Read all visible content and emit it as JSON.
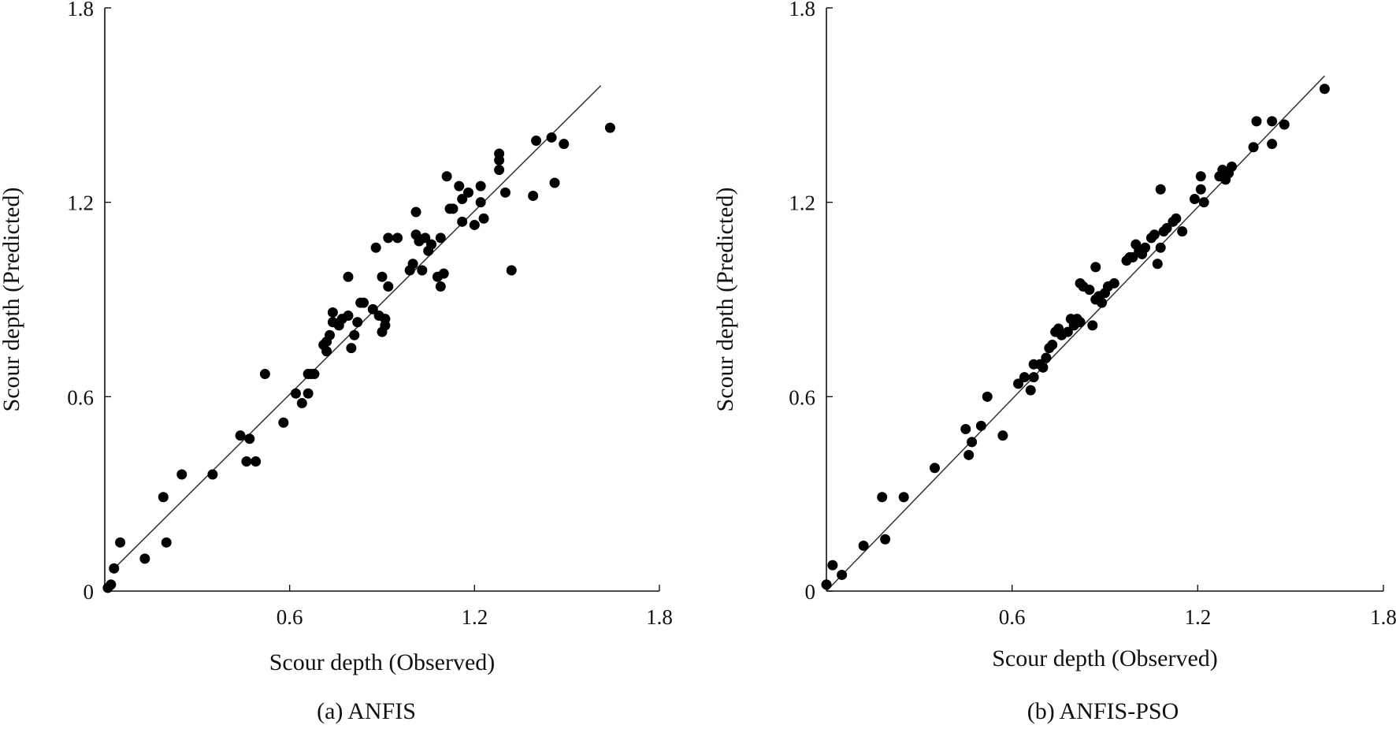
{
  "chart_data": [
    {
      "type": "scatter",
      "caption": "(a) ANFIS",
      "xlabel": "Scour depth (Observed)",
      "ylabel": "Scour depth (Predicted)",
      "xlim": [
        0,
        1.8
      ],
      "ylim": [
        0,
        1.8
      ],
      "xticks": [
        0.6,
        1.2,
        1.8
      ],
      "xtick_labels": [
        "0.6",
        "1.2",
        "1.8"
      ],
      "yticks": [
        0,
        0.6,
        1.2,
        1.8
      ],
      "ytick_labels": [
        "0",
        "0.6",
        "1.2",
        "1.8"
      ],
      "line": {
        "x": [
          0.02,
          1.61
        ],
        "y": [
          0.06,
          1.56
        ],
        "label": "fit line"
      },
      "points": [
        [
          0.01,
          0.01
        ],
        [
          0.02,
          0.02
        ],
        [
          0.03,
          0.07
        ],
        [
          0.05,
          0.15
        ],
        [
          0.13,
          0.1
        ],
        [
          0.19,
          0.29
        ],
        [
          0.2,
          0.15
        ],
        [
          0.25,
          0.36
        ],
        [
          0.35,
          0.36
        ],
        [
          0.44,
          0.48
        ],
        [
          0.46,
          0.4
        ],
        [
          0.47,
          0.47
        ],
        [
          0.49,
          0.4
        ],
        [
          0.52,
          0.67
        ],
        [
          0.58,
          0.52
        ],
        [
          0.62,
          0.61
        ],
        [
          0.64,
          0.58
        ],
        [
          0.66,
          0.61
        ],
        [
          0.66,
          0.67
        ],
        [
          0.67,
          0.67
        ],
        [
          0.68,
          0.67
        ],
        [
          0.71,
          0.76
        ],
        [
          0.72,
          0.74
        ],
        [
          0.72,
          0.77
        ],
        [
          0.73,
          0.79
        ],
        [
          0.74,
          0.86
        ],
        [
          0.74,
          0.83
        ],
        [
          0.76,
          0.82
        ],
        [
          0.77,
          0.84
        ],
        [
          0.79,
          0.85
        ],
        [
          0.79,
          0.97
        ],
        [
          0.8,
          0.75
        ],
        [
          0.81,
          0.79
        ],
        [
          0.82,
          0.83
        ],
        [
          0.83,
          0.89
        ],
        [
          0.84,
          0.89
        ],
        [
          0.87,
          0.87
        ],
        [
          0.88,
          1.06
        ],
        [
          0.89,
          0.85
        ],
        [
          0.9,
          0.8
        ],
        [
          0.9,
          0.97
        ],
        [
          0.91,
          0.84
        ],
        [
          0.91,
          0.82
        ],
        [
          0.92,
          0.94
        ],
        [
          0.92,
          1.09
        ],
        [
          0.95,
          1.09
        ],
        [
          0.99,
          0.99
        ],
        [
          1.0,
          1.01
        ],
        [
          1.01,
          1.1
        ],
        [
          1.01,
          1.17
        ],
        [
          1.02,
          1.08
        ],
        [
          1.03,
          0.99
        ],
        [
          1.04,
          1.09
        ],
        [
          1.05,
          1.05
        ],
        [
          1.06,
          1.07
        ],
        [
          1.08,
          0.97
        ],
        [
          1.09,
          0.94
        ],
        [
          1.09,
          1.09
        ],
        [
          1.1,
          0.98
        ],
        [
          1.11,
          1.28
        ],
        [
          1.12,
          1.18
        ],
        [
          1.13,
          1.18
        ],
        [
          1.15,
          1.25
        ],
        [
          1.16,
          1.14
        ],
        [
          1.16,
          1.21
        ],
        [
          1.18,
          1.23
        ],
        [
          1.2,
          1.13
        ],
        [
          1.22,
          1.25
        ],
        [
          1.22,
          1.2
        ],
        [
          1.23,
          1.15
        ],
        [
          1.28,
          1.33
        ],
        [
          1.28,
          1.35
        ],
        [
          1.28,
          1.3
        ],
        [
          1.3,
          1.23
        ],
        [
          1.32,
          0.99
        ],
        [
          1.39,
          1.22
        ],
        [
          1.4,
          1.39
        ],
        [
          1.45,
          1.4
        ],
        [
          1.46,
          1.26
        ],
        [
          1.49,
          1.38
        ],
        [
          1.64,
          1.43
        ]
      ]
    },
    {
      "type": "scatter",
      "caption": "(b) ANFIS-PSO",
      "xlabel": "Scour depth (Observed)",
      "ylabel": "Scour depth (Predicted)",
      "xlim": [
        0,
        1.8
      ],
      "ylim": [
        0,
        1.8
      ],
      "xticks": [
        0.6,
        1.2,
        1.8
      ],
      "xtick_labels": [
        "0.6",
        "1.2",
        "1.8"
      ],
      "yticks": [
        0,
        0.6,
        1.2,
        1.8
      ],
      "ytick_labels": [
        "0",
        "0.6",
        "1.2",
        "1.8"
      ],
      "line": {
        "x": [
          0.0,
          1.61
        ],
        "y": [
          0.0,
          1.59
        ],
        "label": "fit line"
      },
      "points": [
        [
          0.0,
          0.02
        ],
        [
          0.02,
          0.08
        ],
        [
          0.05,
          0.05
        ],
        [
          0.12,
          0.14
        ],
        [
          0.18,
          0.29
        ],
        [
          0.19,
          0.16
        ],
        [
          0.25,
          0.29
        ],
        [
          0.35,
          0.38
        ],
        [
          0.45,
          0.5
        ],
        [
          0.46,
          0.42
        ],
        [
          0.47,
          0.46
        ],
        [
          0.5,
          0.51
        ],
        [
          0.52,
          0.6
        ],
        [
          0.57,
          0.48
        ],
        [
          0.62,
          0.64
        ],
        [
          0.64,
          0.66
        ],
        [
          0.66,
          0.62
        ],
        [
          0.67,
          0.66
        ],
        [
          0.67,
          0.7
        ],
        [
          0.69,
          0.7
        ],
        [
          0.7,
          0.69
        ],
        [
          0.71,
          0.72
        ],
        [
          0.72,
          0.75
        ],
        [
          0.73,
          0.76
        ],
        [
          0.74,
          0.8
        ],
        [
          0.75,
          0.81
        ],
        [
          0.76,
          0.79
        ],
        [
          0.78,
          0.8
        ],
        [
          0.79,
          0.84
        ],
        [
          0.8,
          0.82
        ],
        [
          0.81,
          0.84
        ],
        [
          0.82,
          0.83
        ],
        [
          0.82,
          0.95
        ],
        [
          0.83,
          0.94
        ],
        [
          0.85,
          0.93
        ],
        [
          0.86,
          0.82
        ],
        [
          0.87,
          1.0
        ],
        [
          0.87,
          0.9
        ],
        [
          0.88,
          0.91
        ],
        [
          0.89,
          0.89
        ],
        [
          0.9,
          0.92
        ],
        [
          0.91,
          0.94
        ],
        [
          0.93,
          0.95
        ],
        [
          0.97,
          1.02
        ],
        [
          0.98,
          1.03
        ],
        [
          0.99,
          1.03
        ],
        [
          1.0,
          1.07
        ],
        [
          1.01,
          1.05
        ],
        [
          1.02,
          1.04
        ],
        [
          1.03,
          1.06
        ],
        [
          1.05,
          1.09
        ],
        [
          1.06,
          1.1
        ],
        [
          1.07,
          1.01
        ],
        [
          1.08,
          1.06
        ],
        [
          1.09,
          1.11
        ],
        [
          1.08,
          1.24
        ],
        [
          1.1,
          1.12
        ],
        [
          1.12,
          1.14
        ],
        [
          1.13,
          1.15
        ],
        [
          1.15,
          1.11
        ],
        [
          1.19,
          1.21
        ],
        [
          1.21,
          1.24
        ],
        [
          1.21,
          1.28
        ],
        [
          1.22,
          1.2
        ],
        [
          1.27,
          1.28
        ],
        [
          1.28,
          1.3
        ],
        [
          1.29,
          1.27
        ],
        [
          1.3,
          1.29
        ],
        [
          1.31,
          1.31
        ],
        [
          1.38,
          1.37
        ],
        [
          1.39,
          1.45
        ],
        [
          1.44,
          1.45
        ],
        [
          1.44,
          1.38
        ],
        [
          1.48,
          1.44
        ],
        [
          1.61,
          1.55
        ]
      ]
    }
  ]
}
